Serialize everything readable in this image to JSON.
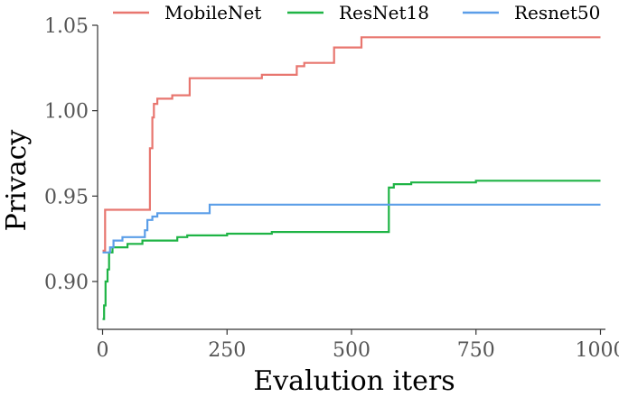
{
  "chart_data": {
    "type": "line",
    "title": "",
    "xlabel": "Evalution iters",
    "ylabel": "Privacy",
    "xlim": [
      -10,
      1010
    ],
    "ylim": [
      0.872,
      1.05
    ],
    "xticks": [
      0,
      250,
      500,
      750,
      1000
    ],
    "xtick_labels": [
      "0",
      "250",
      "500",
      "750",
      "1000"
    ],
    "yticks": [
      0.9,
      0.95,
      1.0,
      1.05
    ],
    "ytick_labels": [
      "0.90",
      "0.95",
      "1.00",
      "1.05"
    ],
    "grid": false,
    "legend_position": "top",
    "line_shape": "step",
    "series": [
      {
        "name": "MobileNet",
        "color": "#e8766f",
        "points": [
          [
            0,
            0.918
          ],
          [
            5,
            0.918
          ],
          [
            5,
            0.942
          ],
          [
            90,
            0.942
          ],
          [
            95,
            0.942
          ],
          [
            95,
            0.978
          ],
          [
            100,
            0.978
          ],
          [
            100,
            0.996
          ],
          [
            103,
            0.996
          ],
          [
            103,
            1.004
          ],
          [
            110,
            1.004
          ],
          [
            110,
            1.007
          ],
          [
            140,
            1.007
          ],
          [
            140,
            1.009
          ],
          [
            175,
            1.009
          ],
          [
            175,
            1.019
          ],
          [
            320,
            1.019
          ],
          [
            320,
            1.021
          ],
          [
            390,
            1.021
          ],
          [
            390,
            1.026
          ],
          [
            405,
            1.026
          ],
          [
            405,
            1.028
          ],
          [
            465,
            1.028
          ],
          [
            465,
            1.037
          ],
          [
            520,
            1.037
          ],
          [
            520,
            1.043
          ],
          [
            1000,
            1.043
          ]
        ]
      },
      {
        "name": "ResNet18",
        "color": "#1fb445",
        "points": [
          [
            0,
            0.878
          ],
          [
            3,
            0.878
          ],
          [
            3,
            0.886
          ],
          [
            6,
            0.886
          ],
          [
            6,
            0.9
          ],
          [
            10,
            0.9
          ],
          [
            10,
            0.907
          ],
          [
            13,
            0.907
          ],
          [
            13,
            0.917
          ],
          [
            20,
            0.917
          ],
          [
            20,
            0.92
          ],
          [
            50,
            0.92
          ],
          [
            50,
            0.922
          ],
          [
            80,
            0.922
          ],
          [
            80,
            0.924
          ],
          [
            150,
            0.924
          ],
          [
            150,
            0.926
          ],
          [
            170,
            0.926
          ],
          [
            170,
            0.927
          ],
          [
            250,
            0.927
          ],
          [
            250,
            0.928
          ],
          [
            340,
            0.928
          ],
          [
            340,
            0.929
          ],
          [
            575,
            0.929
          ],
          [
            575,
            0.955
          ],
          [
            585,
            0.955
          ],
          [
            585,
            0.957
          ],
          [
            620,
            0.957
          ],
          [
            620,
            0.958
          ],
          [
            750,
            0.958
          ],
          [
            750,
            0.959
          ],
          [
            1000,
            0.959
          ]
        ]
      },
      {
        "name": "Resnet50",
        "color": "#5b9ee8",
        "points": [
          [
            0,
            0.917
          ],
          [
            15,
            0.917
          ],
          [
            15,
            0.92
          ],
          [
            22,
            0.92
          ],
          [
            22,
            0.924
          ],
          [
            40,
            0.924
          ],
          [
            40,
            0.926
          ],
          [
            85,
            0.926
          ],
          [
            85,
            0.93
          ],
          [
            90,
            0.93
          ],
          [
            90,
            0.936
          ],
          [
            100,
            0.936
          ],
          [
            100,
            0.938
          ],
          [
            110,
            0.938
          ],
          [
            110,
            0.94
          ],
          [
            215,
            0.94
          ],
          [
            215,
            0.945
          ],
          [
            1000,
            0.945
          ]
        ]
      }
    ]
  }
}
